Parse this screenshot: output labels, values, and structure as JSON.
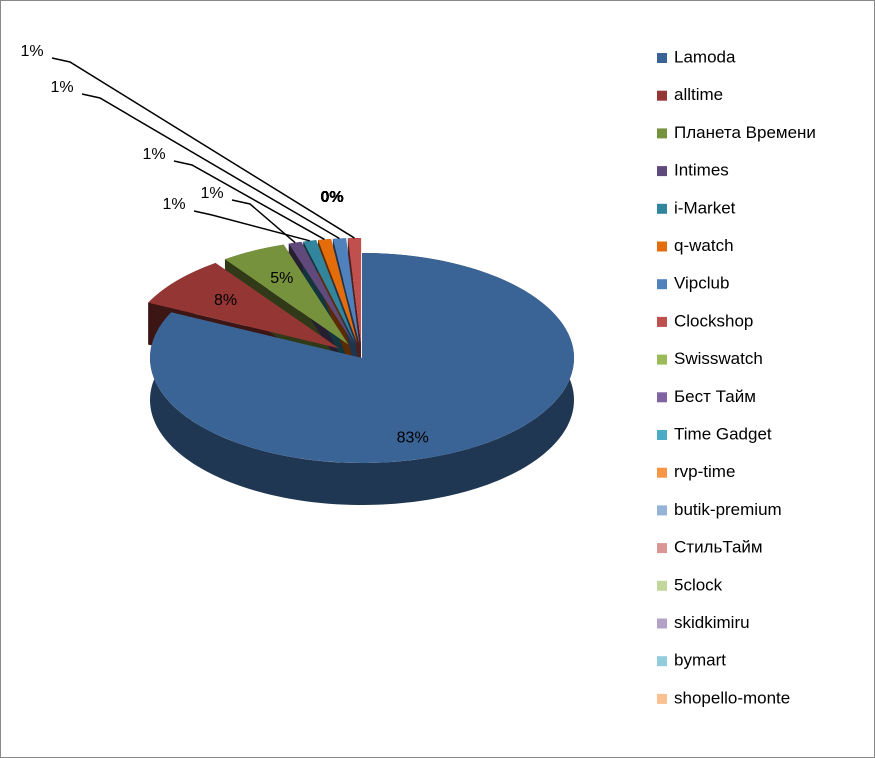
{
  "chart_data": {
    "type": "pie3d",
    "categories": [
      "Lamoda",
      "alltime",
      "Планета Времени",
      "Intimes",
      "i-Market",
      "q-watch",
      "Vipclub",
      "Clockshop",
      "Swisswatch",
      "Бест Тайм",
      "Time Gadget",
      "rvp-time",
      "butik-premium",
      "СтильТайм",
      "5clock",
      "skidkimiru",
      "bymart",
      "shopello-monte"
    ],
    "values": [
      83,
      8,
      5,
      1,
      1,
      1,
      1,
      1,
      0,
      0,
      0,
      0,
      0,
      0,
      0,
      0,
      0,
      0
    ],
    "value_labels": [
      "83%",
      "8%",
      "5%",
      "1%",
      "1%",
      "1%",
      "1%",
      "1%",
      "0%",
      "0%",
      "0%",
      "0%",
      "0%",
      "0%",
      "0%",
      "0%",
      "0%",
      "0%"
    ],
    "colors": [
      "#3b6496",
      "#943634",
      "#77923c",
      "#604a7b",
      "#31859c",
      "#e46c0a",
      "#4f81bd",
      "#c0504d",
      "#9bbb59",
      "#8064a2",
      "#4bacc6",
      "#f79646",
      "#95b3d7",
      "#d99694",
      "#c3d69b",
      "#b3a2c7",
      "#93cddd",
      "#fac090"
    ],
    "legend": "right"
  }
}
